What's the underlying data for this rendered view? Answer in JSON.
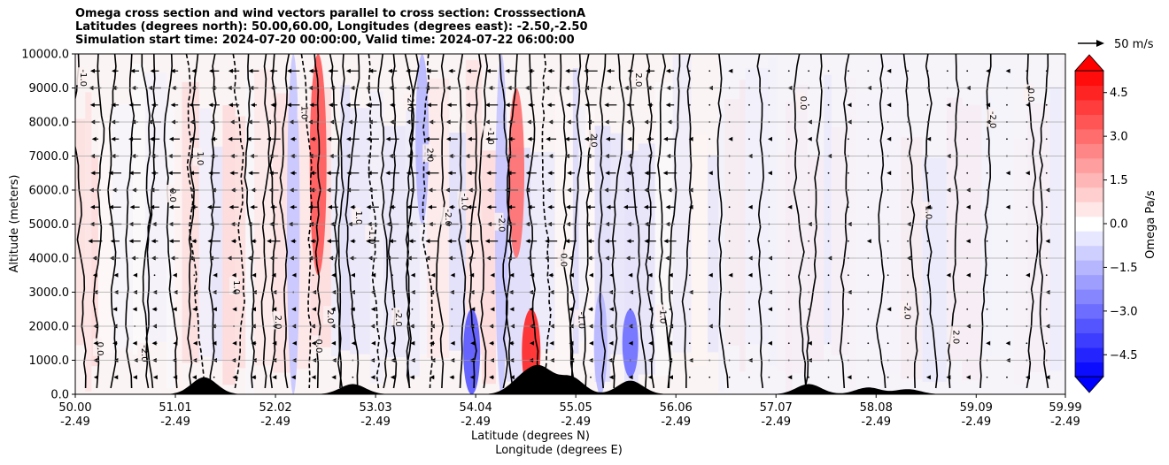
{
  "title_lines": [
    "Omega cross section and wind vectors parallel to cross section: CrosssectionA",
    "Latitudes (degrees north): 50.00,60.00, Longitudes (degrees east): -2.50,-2.50",
    "Simulation start time: 2024-07-20 00:00:00, Valid time: 2024-07-22 06:00:00"
  ],
  "chart_data": {
    "type": "heatmap",
    "title": "Omega cross section and wind vectors parallel to cross section: CrosssectionA",
    "ylabel": "Altitude (meters)",
    "xlabel_lines": [
      "Latitude (degrees N)",
      "Longitude (degrees E)"
    ],
    "ylim": [
      0,
      10000
    ],
    "xlim": [
      50.0,
      59.99
    ],
    "y_ticks": [
      0,
      1000,
      2000,
      3000,
      4000,
      5000,
      6000,
      7000,
      8000,
      9000,
      10000
    ],
    "y_tick_labels": [
      "0.0",
      "1000.0",
      "2000.0",
      "3000.0",
      "4000.0",
      "5000.0",
      "6000.0",
      "7000.0",
      "8000.0",
      "9000.0",
      "10000.0"
    ],
    "x_ticks": [
      50.0,
      51.01,
      52.02,
      53.03,
      54.04,
      55.05,
      56.06,
      57.07,
      58.08,
      59.09,
      59.99
    ],
    "x_tick_labels": [
      [
        "50.00",
        "-2.49"
      ],
      [
        "51.01",
        "-2.49"
      ],
      [
        "52.02",
        "-2.49"
      ],
      [
        "53.03",
        "-2.49"
      ],
      [
        "54.04",
        "-2.49"
      ],
      [
        "55.05",
        "-2.49"
      ],
      [
        "56.06",
        "-2.49"
      ],
      [
        "57.07",
        "-2.49"
      ],
      [
        "58.08",
        "-2.49"
      ],
      [
        "59.09",
        "-2.49"
      ],
      [
        "59.99",
        "-2.49"
      ]
    ],
    "grid": "horizontal",
    "colorbar": {
      "label": "Omega Pa/s",
      "range": [
        -5.25,
        5.25
      ],
      "ticks": [
        4.5,
        3.0,
        1.5,
        0.0,
        -1.5,
        -3.0,
        -4.5
      ],
      "tick_labels": [
        "4.5",
        "3.0",
        "1.5",
        "0.0",
        "−1.5",
        "−3.0",
        "−4.5"
      ],
      "cmap": "bwr",
      "extend": "both"
    },
    "vector_key": {
      "label": "50 m/s",
      "speed": 50
    },
    "omega_features": [
      {
        "lat": 52.45,
        "z_bottom": 3500,
        "z_top": 10000,
        "value": 3.5
      },
      {
        "lat": 52.2,
        "z_bottom": 0,
        "z_top": 10000,
        "value": -1.2
      },
      {
        "lat": 53.5,
        "z_bottom": 5000,
        "z_top": 10000,
        "value": -1.5
      },
      {
        "lat": 54.3,
        "z_bottom": 0,
        "z_top": 10000,
        "value": -1.2
      },
      {
        "lat": 54.45,
        "z_bottom": 4000,
        "z_top": 9000,
        "value": 3.0
      },
      {
        "lat": 54.6,
        "z_bottom": 0,
        "z_top": 2500,
        "value": 4.5
      },
      {
        "lat": 54.0,
        "z_bottom": 0,
        "z_top": 2500,
        "value": -3.5
      },
      {
        "lat": 55.3,
        "z_bottom": 0,
        "z_top": 3000,
        "value": -1.5
      },
      {
        "lat": 55.6,
        "z_bottom": 500,
        "z_top": 2500,
        "value": -3.0
      }
    ],
    "contour_labels": [
      "0.0",
      "1.0",
      "-1.0",
      "2.0",
      "-2.0"
    ],
    "terrain_features": [
      {
        "lat": 51.3,
        "height": 500
      },
      {
        "lat": 52.8,
        "height": 300
      },
      {
        "lat": 54.5,
        "height": 400
      },
      {
        "lat": 54.7,
        "height": 700
      },
      {
        "lat": 55.0,
        "height": 500
      },
      {
        "lat": 55.6,
        "height": 400
      },
      {
        "lat": 57.4,
        "height": 300
      },
      {
        "lat": 58.0,
        "height": 200
      },
      {
        "lat": 58.4,
        "height": 150
      }
    ]
  }
}
